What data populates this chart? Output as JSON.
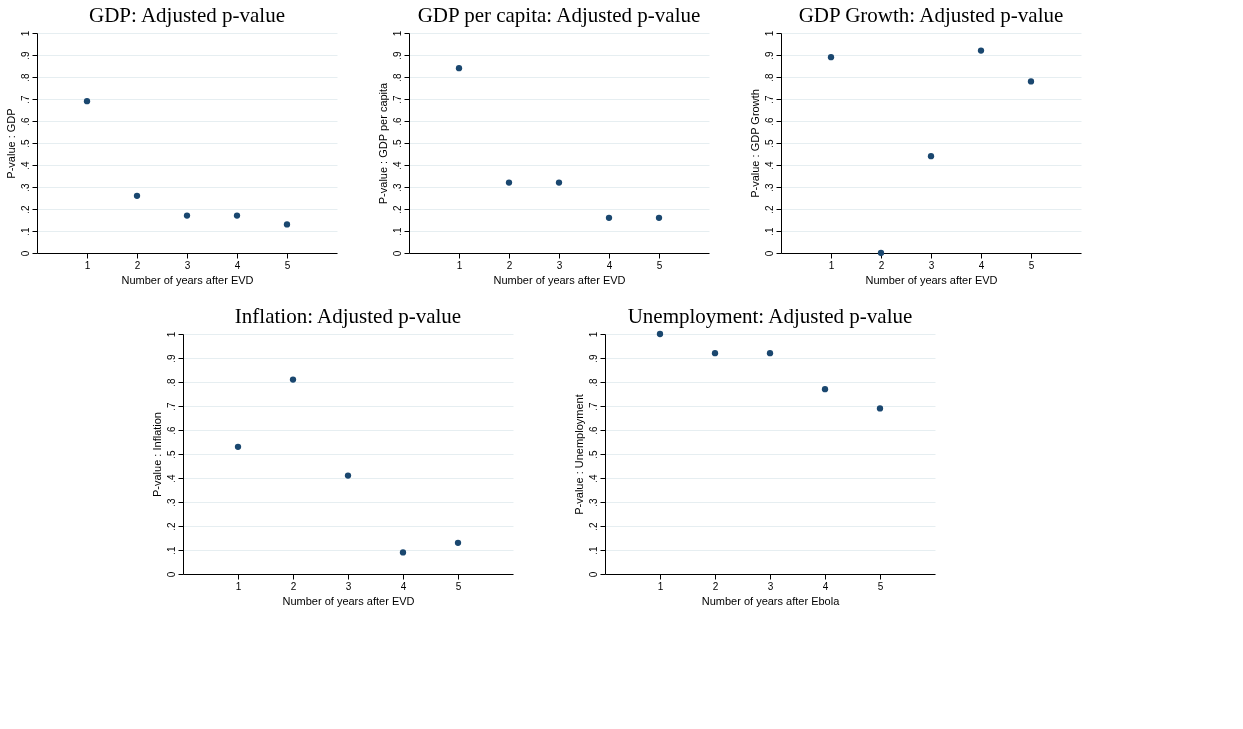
{
  "chart_data": [
    {
      "type": "scatter",
      "title": "GDP: Adjusted p-value",
      "xlabel": "Number of years after EVD",
      "ylabel": "P-value : GDP",
      "x": [
        1,
        2,
        3,
        4,
        5
      ],
      "values": [
        0.69,
        0.26,
        0.17,
        0.17,
        0.13
      ],
      "color": "#1a476f",
      "xlim": [
        0,
        6
      ],
      "xticks": [
        1,
        2,
        3,
        4,
        5
      ],
      "ylim": [
        0,
        1
      ],
      "yticks": [
        0,
        {
          "value": 0.1,
          "label": ".1"
        },
        {
          "value": 0.2,
          "label": ".2"
        },
        {
          "value": 0.3,
          "label": ".3"
        },
        {
          "value": 0.4,
          "label": ".4"
        },
        {
          "value": 0.5,
          "label": ".5"
        },
        {
          "value": 0.6,
          "label": ".6"
        },
        {
          "value": 0.7,
          "label": ".7"
        },
        {
          "value": 0.8,
          "label": ".8"
        },
        {
          "value": 0.9,
          "label": ".9"
        },
        1
      ],
      "grid": "y",
      "marker": "circle"
    },
    {
      "type": "scatter",
      "title": "GDP per capita: Adjusted p-value",
      "xlabel": "Number of years after EVD",
      "ylabel": "P-value : GDP per capita",
      "x": [
        1,
        2,
        3,
        4,
        5
      ],
      "values": [
        0.84,
        0.32,
        0.32,
        0.16,
        0.16
      ],
      "color": "#1a476f",
      "xlim": [
        0,
        6
      ],
      "xticks": [
        1,
        2,
        3,
        4,
        5
      ],
      "ylim": [
        0,
        1
      ],
      "yticks": [
        0,
        {
          "value": 0.1,
          "label": ".1"
        },
        {
          "value": 0.2,
          "label": ".2"
        },
        {
          "value": 0.3,
          "label": ".3"
        },
        {
          "value": 0.4,
          "label": ".4"
        },
        {
          "value": 0.5,
          "label": ".5"
        },
        {
          "value": 0.6,
          "label": ".6"
        },
        {
          "value": 0.7,
          "label": ".7"
        },
        {
          "value": 0.8,
          "label": ".8"
        },
        {
          "value": 0.9,
          "label": ".9"
        },
        1
      ],
      "grid": "y",
      "marker": "circle"
    },
    {
      "type": "scatter",
      "title": "GDP Growth: Adjusted p-value",
      "xlabel": "Number of years after EVD",
      "ylabel": "P-value : GDP Growth",
      "x": [
        1,
        2,
        3,
        4,
        5
      ],
      "values": [
        0.89,
        0.0,
        0.44,
        0.92,
        0.78
      ],
      "color": "#1a476f",
      "xlim": [
        0,
        6
      ],
      "xticks": [
        1,
        2,
        3,
        4,
        5
      ],
      "ylim": [
        0,
        1
      ],
      "yticks": [
        0,
        {
          "value": 0.1,
          "label": ".1"
        },
        {
          "value": 0.2,
          "label": ".2"
        },
        {
          "value": 0.3,
          "label": ".3"
        },
        {
          "value": 0.4,
          "label": ".4"
        },
        {
          "value": 0.5,
          "label": ".5"
        },
        {
          "value": 0.6,
          "label": ".6"
        },
        {
          "value": 0.7,
          "label": ".7"
        },
        {
          "value": 0.8,
          "label": ".8"
        },
        {
          "value": 0.9,
          "label": ".9"
        },
        1
      ],
      "grid": "y",
      "marker": "circle"
    },
    {
      "type": "scatter",
      "title": "Inflation: Adjusted p-value",
      "xlabel": "Number of years after EVD",
      "ylabel": "P-value : Inflation",
      "x": [
        1,
        2,
        3,
        4,
        5
      ],
      "values": [
        0.53,
        0.81,
        0.41,
        0.09,
        0.13
      ],
      "color": "#1a476f",
      "xlim": [
        0,
        6
      ],
      "xticks": [
        1,
        2,
        3,
        4,
        5
      ],
      "ylim": [
        0,
        1
      ],
      "yticks": [
        0,
        {
          "value": 0.1,
          "label": ".1"
        },
        {
          "value": 0.2,
          "label": ".2"
        },
        {
          "value": 0.3,
          "label": ".3"
        },
        {
          "value": 0.4,
          "label": ".4"
        },
        {
          "value": 0.5,
          "label": ".5"
        },
        {
          "value": 0.6,
          "label": ".6"
        },
        {
          "value": 0.7,
          "label": ".7"
        },
        {
          "value": 0.8,
          "label": ".8"
        },
        {
          "value": 0.9,
          "label": ".9"
        },
        1
      ],
      "grid": "y",
      "marker": "circle"
    },
    {
      "type": "scatter",
      "title": "Unemployment: Adjusted p-value",
      "xlabel": "Number of years after Ebola",
      "ylabel": "P-value : Unemployment",
      "x": [
        1,
        2,
        3,
        4,
        5
      ],
      "values": [
        1.0,
        0.92,
        0.92,
        0.77,
        0.69
      ],
      "color": "#1a476f",
      "xlim": [
        0,
        6
      ],
      "xticks": [
        1,
        2,
        3,
        4,
        5
      ],
      "ylim": [
        0,
        1
      ],
      "yticks": [
        0,
        {
          "value": 0.1,
          "label": ".1"
        },
        {
          "value": 0.2,
          "label": ".2"
        },
        {
          "value": 0.3,
          "label": ".3"
        },
        {
          "value": 0.4,
          "label": ".4"
        },
        {
          "value": 0.5,
          "label": ".5"
        },
        {
          "value": 0.6,
          "label": ".6"
        },
        {
          "value": 0.7,
          "label": ".7"
        },
        {
          "value": 0.8,
          "label": ".8"
        },
        {
          "value": 0.9,
          "label": ".9"
        },
        1
      ],
      "grid": "y",
      "marker": "circle"
    }
  ]
}
